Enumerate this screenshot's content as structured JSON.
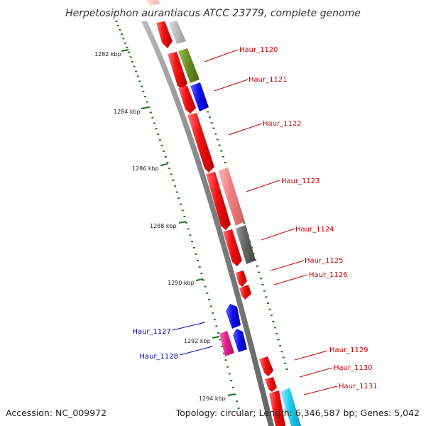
{
  "title": "Herpetosiphon aurantiacus ATCC 23779, complete genome",
  "footer": {
    "accession": "Accession: NC_009972",
    "summary": "Topology: circular; Length: 6,346,587 bp; Genes: 5,042"
  },
  "scale_ticks": [
    {
      "label": "1282 kbp"
    },
    {
      "label": "1284 kbp"
    },
    {
      "label": "1286 kbp"
    },
    {
      "label": "1288 kbp"
    },
    {
      "label": "1290 kbp"
    },
    {
      "label": "1292 kbp"
    },
    {
      "label": "1294 kbp"
    }
  ],
  "gene_labels": [
    {
      "text": "Haur_1120",
      "color": "#cc0000"
    },
    {
      "text": "Haur_1121",
      "color": "#cc0000"
    },
    {
      "text": "Haur_1122",
      "color": "#cc0000"
    },
    {
      "text": "Haur_1123",
      "color": "#cc0000"
    },
    {
      "text": "Haur_1124",
      "color": "#cc0000"
    },
    {
      "text": "Haur_1125",
      "color": "#cc0000"
    },
    {
      "text": "Haur_1126",
      "color": "#cc0000"
    },
    {
      "text": "Haur_1127",
      "color": "#0000aa"
    },
    {
      "text": "Haur_1128",
      "color": "#0000aa"
    },
    {
      "text": "Haur_1129",
      "color": "#cc0000"
    },
    {
      "text": "Haur_1130",
      "color": "#cc0000"
    },
    {
      "text": "Haur_1131",
      "color": "#cc0000"
    }
  ],
  "colors": {
    "backbone": "#808080",
    "tick": "#1a7a1a",
    "cds_red": "#ee1111",
    "cds_pink": "#f08080",
    "cds_grey": "#bdbdbd",
    "cds_darkgrey": "#666666",
    "cds_olive": "#6b8e23",
    "cds_blue": "#1010ee",
    "cds_magenta": "#e0218a",
    "cds_cyan": "#22ccee",
    "label_red": "#cc0000",
    "label_blue": "#0000aa"
  }
}
